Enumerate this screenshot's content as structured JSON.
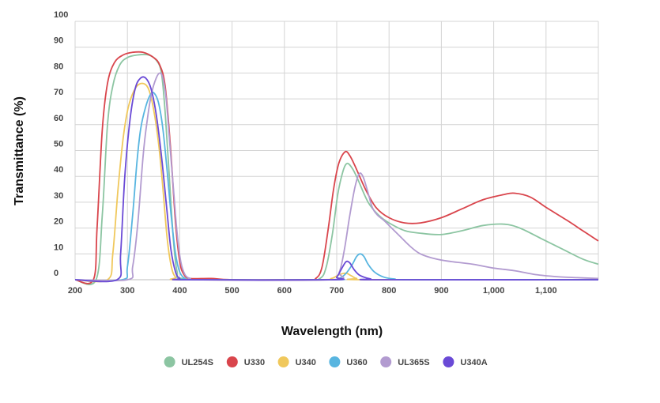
{
  "chart_data": {
    "type": "line",
    "title": "",
    "xlabel": "Wavelength (nm)",
    "ylabel": "Transmittance (%)",
    "xlim": [
      200,
      1200
    ],
    "ylim": [
      0,
      100
    ],
    "x_ticks": [
      200,
      300,
      400,
      500,
      600,
      700,
      800,
      900,
      1000,
      1100
    ],
    "x_tick_labels": [
      "200",
      "300",
      "400",
      "500",
      "600",
      "700",
      "800",
      "900",
      "1,000",
      "1,100"
    ],
    "y_ticks": [
      0,
      10,
      20,
      30,
      40,
      50,
      60,
      70,
      80,
      90,
      100
    ],
    "y_tick_labels": [
      "0",
      "10",
      "20",
      "30",
      "40",
      "50",
      "60",
      "70",
      "80",
      "90",
      "100"
    ],
    "grid": true,
    "legend_position": "bottom",
    "series": [
      {
        "name": "UL254S",
        "color": "#8cc5a2",
        "points": [
          [
            200,
            0
          ],
          [
            240,
            0
          ],
          [
            252,
            25
          ],
          [
            262,
            60
          ],
          [
            272,
            75
          ],
          [
            285,
            83
          ],
          [
            300,
            86
          ],
          [
            320,
            87
          ],
          [
            340,
            87
          ],
          [
            355,
            85
          ],
          [
            365,
            80
          ],
          [
            372,
            65
          ],
          [
            380,
            40
          ],
          [
            388,
            15
          ],
          [
            395,
            3
          ],
          [
            405,
            0.5
          ],
          [
            500,
            0
          ],
          [
            640,
            0
          ],
          [
            668,
            0.5
          ],
          [
            680,
            5
          ],
          [
            692,
            18
          ],
          [
            702,
            33
          ],
          [
            712,
            42
          ],
          [
            720,
            45
          ],
          [
            730,
            43
          ],
          [
            740,
            39
          ],
          [
            760,
            30
          ],
          [
            780,
            25
          ],
          [
            800,
            22
          ],
          [
            830,
            19
          ],
          [
            860,
            18
          ],
          [
            900,
            17.5
          ],
          [
            940,
            19
          ],
          [
            980,
            21
          ],
          [
            1020,
            21.5
          ],
          [
            1050,
            20
          ],
          [
            1090,
            16
          ],
          [
            1130,
            12
          ],
          [
            1170,
            8
          ],
          [
            1200,
            6
          ]
        ]
      },
      {
        "name": "U330",
        "color": "#d9454c",
        "points": [
          [
            200,
            0
          ],
          [
            235,
            0
          ],
          [
            242,
            20
          ],
          [
            252,
            58
          ],
          [
            262,
            76
          ],
          [
            275,
            84
          ],
          [
            292,
            87
          ],
          [
            310,
            88
          ],
          [
            330,
            88
          ],
          [
            350,
            86
          ],
          [
            362,
            83
          ],
          [
            372,
            75
          ],
          [
            382,
            52
          ],
          [
            392,
            22
          ],
          [
            400,
            7
          ],
          [
            408,
            2
          ],
          [
            420,
            0.5
          ],
          [
            460,
            0.5
          ],
          [
            500,
            0
          ],
          [
            640,
            0
          ],
          [
            660,
            0.5
          ],
          [
            672,
            5
          ],
          [
            684,
            20
          ],
          [
            694,
            35
          ],
          [
            704,
            45
          ],
          [
            716,
            49.5
          ],
          [
            725,
            48
          ],
          [
            735,
            44
          ],
          [
            755,
            35
          ],
          [
            775,
            28
          ],
          [
            800,
            24
          ],
          [
            830,
            22
          ],
          [
            860,
            22
          ],
          [
            900,
            24
          ],
          [
            940,
            27.5
          ],
          [
            980,
            31
          ],
          [
            1020,
            33
          ],
          [
            1040,
            33.5
          ],
          [
            1070,
            32
          ],
          [
            1100,
            28
          ],
          [
            1140,
            23
          ],
          [
            1170,
            19
          ],
          [
            1200,
            15
          ]
        ]
      },
      {
        "name": "U340",
        "color": "#f0c85c",
        "points": [
          [
            200,
            0
          ],
          [
            262,
            0
          ],
          [
            272,
            10
          ],
          [
            282,
            35
          ],
          [
            292,
            55
          ],
          [
            302,
            67
          ],
          [
            315,
            74
          ],
          [
            328,
            76
          ],
          [
            340,
            74
          ],
          [
            350,
            66
          ],
          [
            360,
            52
          ],
          [
            368,
            35
          ],
          [
            376,
            16
          ],
          [
            384,
            5
          ],
          [
            392,
            1
          ],
          [
            405,
            0
          ],
          [
            660,
            0
          ],
          [
            690,
            0.5
          ],
          [
            705,
            2
          ],
          [
            718,
            2.5
          ],
          [
            728,
            1.5
          ],
          [
            738,
            0.5
          ],
          [
            760,
            0
          ],
          [
            1200,
            0
          ]
        ]
      },
      {
        "name": "U360",
        "color": "#58b5e0",
        "points": [
          [
            200,
            0
          ],
          [
            290,
            0
          ],
          [
            300,
            5
          ],
          [
            310,
            25
          ],
          [
            318,
            45
          ],
          [
            325,
            58
          ],
          [
            335,
            67
          ],
          [
            345,
            72
          ],
          [
            352,
            72
          ],
          [
            360,
            68
          ],
          [
            368,
            58
          ],
          [
            376,
            42
          ],
          [
            384,
            24
          ],
          [
            392,
            10
          ],
          [
            400,
            3
          ],
          [
            410,
            0.5
          ],
          [
            420,
            0
          ],
          [
            690,
            0
          ],
          [
            705,
            0.5
          ],
          [
            718,
            2.5
          ],
          [
            730,
            6
          ],
          [
            738,
            9
          ],
          [
            745,
            10
          ],
          [
            752,
            9
          ],
          [
            760,
            6
          ],
          [
            772,
            3
          ],
          [
            790,
            1
          ],
          [
            810,
            0.3
          ],
          [
            850,
            0
          ],
          [
            1200,
            0
          ]
        ]
      },
      {
        "name": "UL365S",
        "color": "#b29bd0",
        "points": [
          [
            200,
            0
          ],
          [
            300,
            0
          ],
          [
            310,
            5
          ],
          [
            320,
            22
          ],
          [
            330,
            48
          ],
          [
            338,
            62
          ],
          [
            346,
            72
          ],
          [
            355,
            78
          ],
          [
            362,
            80
          ],
          [
            368,
            78
          ],
          [
            374,
            70
          ],
          [
            380,
            55
          ],
          [
            388,
            35
          ],
          [
            395,
            18
          ],
          [
            402,
            7
          ],
          [
            410,
            2
          ],
          [
            420,
            0.5
          ],
          [
            440,
            0
          ],
          [
            690,
            0
          ],
          [
            705,
            3
          ],
          [
            715,
            12
          ],
          [
            725,
            25
          ],
          [
            735,
            36
          ],
          [
            743,
            41
          ],
          [
            750,
            40
          ],
          [
            758,
            35
          ],
          [
            768,
            28
          ],
          [
            778,
            25
          ],
          [
            790,
            23
          ],
          [
            805,
            20
          ],
          [
            820,
            17
          ],
          [
            840,
            13
          ],
          [
            860,
            10
          ],
          [
            890,
            8
          ],
          [
            920,
            7
          ],
          [
            960,
            6
          ],
          [
            1000,
            4.5
          ],
          [
            1040,
            3.5
          ],
          [
            1080,
            2
          ],
          [
            1120,
            1.2
          ],
          [
            1160,
            0.8
          ],
          [
            1200,
            0.5
          ]
        ]
      },
      {
        "name": "U340A",
        "color": "#6a4ad6",
        "points": [
          [
            200,
            0
          ],
          [
            280,
            0
          ],
          [
            287,
            10
          ],
          [
            295,
            40
          ],
          [
            305,
            62
          ],
          [
            315,
            74
          ],
          [
            325,
            78
          ],
          [
            335,
            78
          ],
          [
            345,
            74
          ],
          [
            355,
            64
          ],
          [
            365,
            48
          ],
          [
            375,
            28
          ],
          [
            383,
            12
          ],
          [
            392,
            3
          ],
          [
            400,
            0.5
          ],
          [
            410,
            0
          ],
          [
            690,
            0
          ],
          [
            700,
            1
          ],
          [
            710,
            4.5
          ],
          [
            718,
            7
          ],
          [
            725,
            6.5
          ],
          [
            733,
            4
          ],
          [
            742,
            2
          ],
          [
            752,
            1
          ],
          [
            765,
            0.3
          ],
          [
            780,
            0
          ],
          [
            1200,
            0
          ]
        ]
      }
    ]
  }
}
